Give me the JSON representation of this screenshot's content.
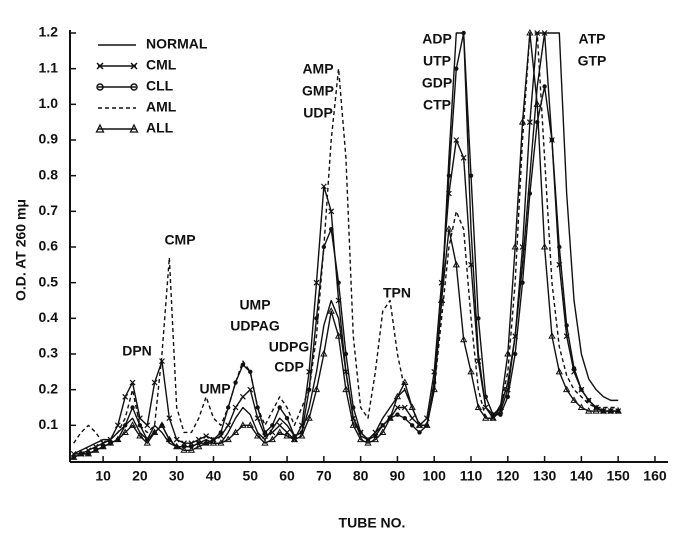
{
  "chart_data": {
    "type": "line",
    "x_label": "TUBE NO.",
    "y_label": "O.D. AT 260 mμ",
    "annotations": [
      "DPN",
      "CMP",
      "UMP",
      "UMP",
      "UDPAG",
      "UDPG",
      "CDP",
      "AMP",
      "GMP",
      "UDP",
      "TPN",
      "ADP",
      "UTP",
      "GDP",
      "CTP",
      "ATP",
      "GTP"
    ],
    "xlim": [
      1,
      163
    ],
    "xticks": [
      10,
      20,
      30,
      40,
      50,
      60,
      70,
      80,
      90,
      100,
      110,
      120,
      130,
      140,
      150,
      160
    ],
    "ylim": [
      0,
      1.2
    ],
    "yticks": [
      0.1,
      0.2,
      0.3,
      0.4,
      0.5,
      0.6,
      0.7,
      0.8,
      0.9,
      {
        "value": 1.0,
        "label": "1.0"
      },
      1.1,
      1.2
    ],
    "grid": false,
    "legend": "top-left",
    "x": [
      2,
      4,
      6,
      8,
      10,
      12,
      14,
      16,
      18,
      20,
      22,
      24,
      26,
      28,
      30,
      32,
      34,
      36,
      38,
      40,
      42,
      44,
      46,
      48,
      50,
      52,
      54,
      56,
      58,
      60,
      62,
      64,
      66,
      68,
      70,
      72,
      74,
      76,
      78,
      80,
      82,
      84,
      86,
      88,
      90,
      92,
      94,
      96,
      98,
      100,
      102,
      104,
      106,
      108,
      110,
      112,
      114,
      116,
      118,
      120,
      122,
      124,
      126,
      128,
      130,
      132,
      134,
      136,
      138,
      140,
      142,
      144,
      146,
      148,
      150
    ],
    "series": [
      {
        "name": "NORMAL",
        "color": "#111111",
        "dash": false,
        "marker": "none",
        "values": [
          0.02,
          0.03,
          0.04,
          0.05,
          0.06,
          0.06,
          0.08,
          0.1,
          0.12,
          0.08,
          0.06,
          0.1,
          0.08,
          0.05,
          0.04,
          0.04,
          0.04,
          0.05,
          0.06,
          0.05,
          0.05,
          0.08,
          0.12,
          0.15,
          0.13,
          0.08,
          0.06,
          0.09,
          0.12,
          0.1,
          0.07,
          0.08,
          0.15,
          0.25,
          0.38,
          0.45,
          0.4,
          0.25,
          0.12,
          0.07,
          0.06,
          0.08,
          0.12,
          0.15,
          0.18,
          0.2,
          0.15,
          0.1,
          0.1,
          0.2,
          0.45,
          0.85,
          1.2,
          1.2,
          0.65,
          0.3,
          0.15,
          0.13,
          0.15,
          0.22,
          0.35,
          0.55,
          0.8,
          1.05,
          1.2,
          1.2,
          1.2,
          0.75,
          0.45,
          0.3,
          0.23,
          0.2,
          0.18,
          0.17,
          0.17
        ]
      },
      {
        "name": "CML",
        "color": "#111111",
        "dash": false,
        "marker": "x",
        "values": [
          0.02,
          0.02,
          0.03,
          0.04,
          0.05,
          0.06,
          0.1,
          0.18,
          0.22,
          0.12,
          0.1,
          0.22,
          0.28,
          0.12,
          0.06,
          0.05,
          0.05,
          0.06,
          0.07,
          0.06,
          0.07,
          0.1,
          0.15,
          0.18,
          0.2,
          0.12,
          0.07,
          0.08,
          0.1,
          0.08,
          0.06,
          0.1,
          0.25,
          0.5,
          0.77,
          0.7,
          0.45,
          0.25,
          0.12,
          0.08,
          0.06,
          0.08,
          0.1,
          0.12,
          0.15,
          0.15,
          0.12,
          0.1,
          0.12,
          0.25,
          0.5,
          0.75,
          0.9,
          0.85,
          0.55,
          0.28,
          0.15,
          0.12,
          0.14,
          0.2,
          0.35,
          0.6,
          0.95,
          1.2,
          1.2,
          0.9,
          0.55,
          0.35,
          0.25,
          0.2,
          0.17,
          0.15,
          0.14,
          0.14,
          0.14
        ]
      },
      {
        "name": "CLL",
        "color": "#111111",
        "dash": false,
        "marker": "o",
        "values": [
          0.01,
          0.02,
          0.02,
          0.03,
          0.04,
          0.05,
          0.06,
          0.1,
          0.15,
          0.1,
          0.06,
          0.08,
          0.1,
          0.06,
          0.04,
          0.04,
          0.04,
          0.05,
          0.05,
          0.06,
          0.08,
          0.15,
          0.22,
          0.27,
          0.25,
          0.15,
          0.08,
          0.1,
          0.15,
          0.12,
          0.07,
          0.08,
          0.2,
          0.4,
          0.6,
          0.65,
          0.5,
          0.3,
          0.15,
          0.08,
          0.06,
          0.07,
          0.1,
          0.12,
          0.13,
          0.12,
          0.1,
          0.08,
          0.1,
          0.22,
          0.45,
          0.8,
          1.1,
          1.2,
          0.8,
          0.4,
          0.18,
          0.13,
          0.13,
          0.18,
          0.3,
          0.5,
          0.75,
          0.95,
          1.05,
          0.9,
          0.6,
          0.38,
          0.26,
          0.2,
          0.17,
          0.15,
          0.14,
          0.14,
          0.14
        ]
      },
      {
        "name": "AML",
        "color": "#111111",
        "dash": true,
        "marker": "none",
        "values": [
          0.05,
          0.08,
          0.1,
          0.08,
          0.05,
          0.06,
          0.08,
          0.12,
          0.2,
          0.1,
          0.08,
          0.1,
          0.3,
          0.57,
          0.15,
          0.08,
          0.08,
          0.12,
          0.18,
          0.12,
          0.1,
          0.15,
          0.22,
          0.28,
          0.25,
          0.15,
          0.1,
          0.14,
          0.18,
          0.15,
          0.1,
          0.15,
          0.2,
          0.35,
          0.6,
          0.9,
          1.1,
          0.85,
          0.35,
          0.15,
          0.12,
          0.25,
          0.42,
          0.45,
          0.3,
          0.2,
          0.15,
          0.1,
          0.1,
          0.2,
          0.4,
          0.6,
          0.7,
          0.65,
          0.4,
          0.2,
          0.12,
          0.12,
          0.15,
          0.25,
          0.5,
          0.9,
          1.2,
          1.2,
          0.85,
          0.5,
          0.32,
          0.24,
          0.2,
          0.18,
          0.16,
          0.15,
          0.15,
          0.15,
          0.15
        ]
      },
      {
        "name": "ALL",
        "color": "#111111",
        "dash": false,
        "marker": "triangle",
        "values": [
          0.01,
          0.02,
          0.02,
          0.03,
          0.04,
          0.05,
          0.06,
          0.08,
          0.1,
          0.07,
          0.05,
          0.08,
          0.1,
          0.06,
          0.04,
          0.03,
          0.03,
          0.04,
          0.05,
          0.05,
          0.05,
          0.06,
          0.08,
          0.1,
          0.1,
          0.07,
          0.05,
          0.06,
          0.08,
          0.07,
          0.06,
          0.07,
          0.12,
          0.2,
          0.3,
          0.42,
          0.35,
          0.2,
          0.1,
          0.06,
          0.05,
          0.06,
          0.08,
          0.12,
          0.18,
          0.22,
          0.15,
          0.1,
          0.1,
          0.2,
          0.45,
          0.65,
          0.55,
          0.34,
          0.25,
          0.15,
          0.12,
          0.12,
          0.15,
          0.3,
          0.6,
          0.95,
          1.2,
          1.0,
          0.6,
          0.35,
          0.25,
          0.2,
          0.17,
          0.15,
          0.14,
          0.14,
          0.14,
          0.14,
          0.14
        ]
      }
    ]
  }
}
